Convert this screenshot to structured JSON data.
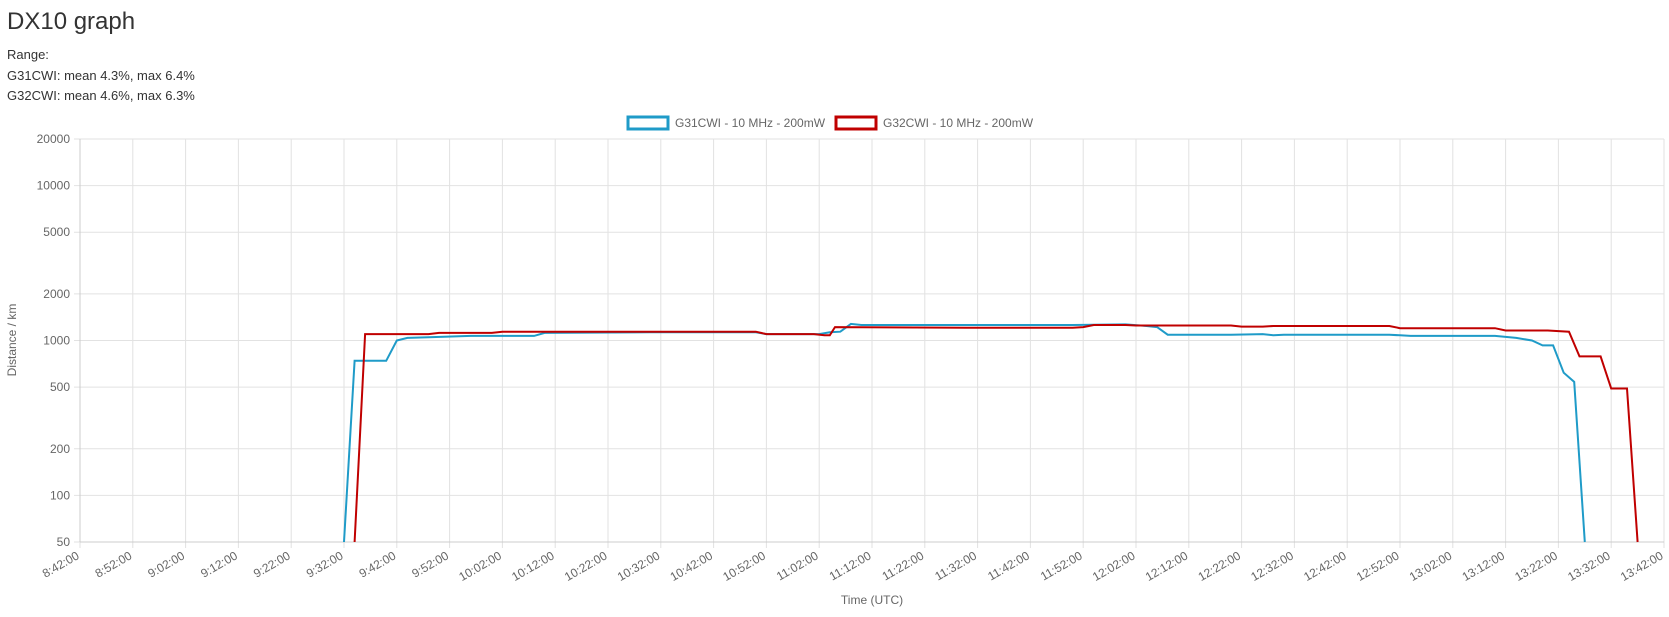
{
  "header": {
    "title": "DX10 graph",
    "range_label": "Range:",
    "stats": [
      "G31CWI: mean 4.3%, max 6.4%",
      "G32CWI: mean 4.6%, max 6.3%"
    ]
  },
  "chart_data": {
    "type": "line",
    "y_label": "Distance / km",
    "x_label": "Time (UTC)",
    "log_y": true,
    "grid": true,
    "legend": "top",
    "xlim": [
      "8:42:00",
      "13:42:00"
    ],
    "xticks": [
      "8:42:00",
      "8:52:00",
      "9:02:00",
      "9:12:00",
      "9:22:00",
      "9:32:00",
      "9:42:00",
      "9:52:00",
      "10:02:00",
      "10:12:00",
      "10:22:00",
      "10:32:00",
      "10:42:00",
      "10:52:00",
      "11:02:00",
      "11:12:00",
      "11:22:00",
      "11:32:00",
      "11:42:00",
      "11:52:00",
      "12:02:00",
      "12:12:00",
      "12:22:00",
      "12:32:00",
      "12:42:00",
      "12:52:00",
      "13:02:00",
      "13:12:00",
      "13:22:00",
      "13:32:00",
      "13:42:00"
    ],
    "ylim": [
      50,
      20000
    ],
    "yticks": [
      50,
      100,
      200,
      500,
      1000,
      2000,
      5000,
      10000,
      20000
    ],
    "series": [
      {
        "name": "G31CWI - 10 MHz - 200mW",
        "color": "#1f9bc8",
        "x": [
          "9:32:00",
          "9:34:00",
          "9:40:00",
          "9:42:00",
          "9:44:00",
          "9:48:00",
          "9:56:00",
          "10:08:00",
          "10:10:00",
          "10:30:00",
          "10:50:00",
          "10:52:00",
          "11:02:00",
          "11:04:00",
          "11:06:00",
          "11:08:00",
          "11:10:00",
          "11:30:00",
          "11:50:00",
          "12:00:00",
          "12:04:00",
          "12:06:00",
          "12:08:00",
          "12:20:00",
          "12:26:00",
          "12:28:00",
          "12:30:00",
          "12:50:00",
          "12:52:00",
          "12:54:00",
          "13:10:00",
          "13:14:00",
          "13:17:00",
          "13:19:00",
          "13:21:00",
          "13:23:00",
          "13:25:00",
          "13:27:00"
        ],
        "values": [
          50,
          740,
          740,
          1000,
          1040,
          1050,
          1070,
          1070,
          1120,
          1130,
          1130,
          1100,
          1100,
          1130,
          1140,
          1280,
          1260,
          1260,
          1260,
          1270,
          1240,
          1220,
          1090,
          1090,
          1100,
          1080,
          1090,
          1090,
          1080,
          1070,
          1070,
          1040,
          1000,
          930,
          930,
          620,
          540,
          50
        ]
      },
      {
        "name": "G32CWI - 10 MHz - 200mW",
        "color": "#c00000",
        "x": [
          "9:34:00",
          "9:36:00",
          "9:48:00",
          "9:50:00",
          "10:00:00",
          "10:02:00",
          "10:30:00",
          "10:50:00",
          "10:52:00",
          "11:01:00",
          "11:03:00",
          "11:04:00",
          "11:05:00",
          "11:30:00",
          "11:50:00",
          "11:52:00",
          "11:54:00",
          "12:00:00",
          "12:02:00",
          "12:20:00",
          "12:22:00",
          "12:26:00",
          "12:28:00",
          "12:50:00",
          "12:52:00",
          "13:10:00",
          "13:12:00",
          "13:20:00",
          "13:24:00",
          "13:26:00",
          "13:30:00",
          "13:32:00",
          "13:35:00",
          "13:37:00"
        ],
        "values": [
          50,
          1100,
          1100,
          1120,
          1120,
          1140,
          1140,
          1140,
          1100,
          1100,
          1080,
          1080,
          1220,
          1210,
          1210,
          1220,
          1260,
          1260,
          1250,
          1250,
          1230,
          1230,
          1240,
          1240,
          1200,
          1200,
          1160,
          1160,
          1140,
          790,
          790,
          490,
          490,
          50
        ]
      }
    ]
  }
}
